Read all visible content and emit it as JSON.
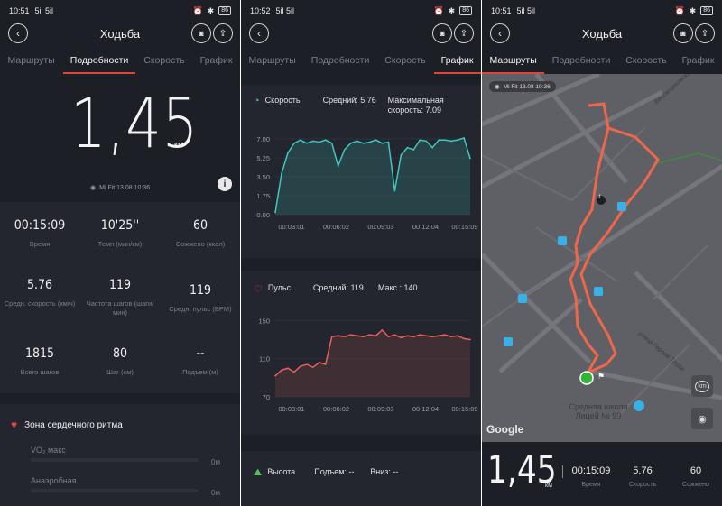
{
  "status": {
    "time1": "10:51",
    "time2": "10:52",
    "time3": "10:51",
    "signal": "5il 5il",
    "battery": "86"
  },
  "header": {
    "title": "Ходьба"
  },
  "tabs": [
    "Маршруты",
    "Подробности",
    "Скорость",
    "График"
  ],
  "details": {
    "distance": "1,45",
    "unit": "км",
    "source": "Mi Fit  13.08 10:36",
    "stats": [
      {
        "value": "00:15:09",
        "label": "Время"
      },
      {
        "value": "10'25''",
        "label": "Темп (мин/км)"
      },
      {
        "value": "60",
        "label": "Сожжено (ккал)"
      },
      {
        "value": "5.76",
        "label": "Средн. скорость (км/ч)"
      },
      {
        "value": "119",
        "label": "Частота шагов (шаги/мин)"
      },
      {
        "value": "119",
        "label": "Средн. пульс (BPM)"
      },
      {
        "value": "1815",
        "label": "Всего шагов"
      },
      {
        "value": "80",
        "label": "Шаг (см)"
      },
      {
        "value": "--",
        "label": "Подъем (м)"
      }
    ],
    "hr_zone_title": "Зона сердечного ритма",
    "zones": [
      {
        "label": "VO₂ макс",
        "value": "0м"
      },
      {
        "label": "Анаэробная",
        "value": "0м"
      }
    ]
  },
  "graphs": {
    "speed": {
      "title": "Скорость",
      "avg": "Средний: 5.76",
      "max": "Максимальная скорость: 7.09"
    },
    "pulse": {
      "title": "Пульс",
      "avg": "Средний: 119",
      "max": "Макс.: 140"
    },
    "height": {
      "title": "Высота",
      "up": "Подъем: --",
      "down": "Вниз: --"
    }
  },
  "chart_data": [
    {
      "type": "area",
      "title": "Скорость",
      "x": [
        "00:00:00",
        "00:00:30",
        "00:01:00",
        "00:01:30",
        "00:02:00",
        "00:02:30",
        "00:03:00",
        "00:03:30",
        "00:04:00",
        "00:04:30",
        "00:05:00",
        "00:05:30",
        "00:06:00",
        "00:06:30",
        "00:07:00",
        "00:07:30",
        "00:08:00",
        "00:08:30",
        "00:09:00",
        "00:09:30",
        "00:10:00",
        "00:10:30",
        "00:11:00",
        "00:11:30",
        "00:12:00",
        "00:12:30",
        "00:13:00",
        "00:13:30",
        "00:14:00",
        "00:14:30",
        "00:15:00",
        "00:15:09"
      ],
      "y": [
        0.2,
        3.8,
        5.7,
        6.6,
        6.9,
        6.6,
        6.8,
        6.7,
        6.9,
        6.6,
        4.5,
        6.0,
        6.6,
        6.8,
        6.6,
        6.7,
        6.9,
        6.6,
        6.7,
        2.2,
        5.5,
        6.2,
        6.0,
        6.9,
        6.8,
        6.2,
        6.9,
        6.9,
        6.8,
        6.9,
        7.09,
        5.2
      ],
      "xticks": [
        "00:03:01",
        "00:06:02",
        "00:09:03",
        "00:12:04",
        "00:15:09"
      ],
      "yticks": [
        "0.00",
        "1.75",
        "3.50",
        "5.25",
        "7.00"
      ],
      "ylim": [
        0,
        7.5
      ]
    },
    {
      "type": "area",
      "title": "Пульс",
      "x": [
        "00:00:00",
        "00:00:30",
        "00:01:00",
        "00:01:30",
        "00:02:00",
        "00:02:30",
        "00:03:00",
        "00:03:30",
        "00:04:00",
        "00:04:30",
        "00:05:00",
        "00:05:30",
        "00:06:00",
        "00:06:30",
        "00:07:00",
        "00:07:30",
        "00:08:00",
        "00:08:30",
        "00:09:00",
        "00:09:30",
        "00:10:00",
        "00:10:30",
        "00:11:00",
        "00:11:30",
        "00:12:00",
        "00:12:30",
        "00:13:00",
        "00:13:30",
        "00:14:00",
        "00:14:30",
        "00:15:00",
        "00:15:09"
      ],
      "y": [
        92,
        98,
        100,
        96,
        102,
        104,
        101,
        106,
        104,
        133,
        134,
        133,
        135,
        134,
        133,
        135,
        134,
        140,
        133,
        135,
        132,
        134,
        133,
        135,
        134,
        133,
        134,
        135,
        133,
        134,
        131,
        130
      ],
      "xticks": [
        "00:03:01",
        "00:06:02",
        "00:09:03",
        "00:12:04",
        "00:15:09"
      ],
      "yticks": [
        "70",
        "110",
        "150"
      ],
      "ylim": [
        70,
        155
      ]
    }
  ],
  "map": {
    "source": "Mi Fit  13.08 10:36",
    "poi": "Средняя школа Лицей № 99",
    "google": "Google",
    "street1": "Весовщиковская улица",
    "street2": "улица Героев Труда"
  },
  "summary": {
    "distance": "1,45",
    "unit": "км",
    "stats": [
      {
        "value": "00:15:09",
        "label": "Время"
      },
      {
        "value": "5.76",
        "label": "Скорость"
      },
      {
        "value": "60",
        "label": "Сожжено"
      }
    ]
  }
}
